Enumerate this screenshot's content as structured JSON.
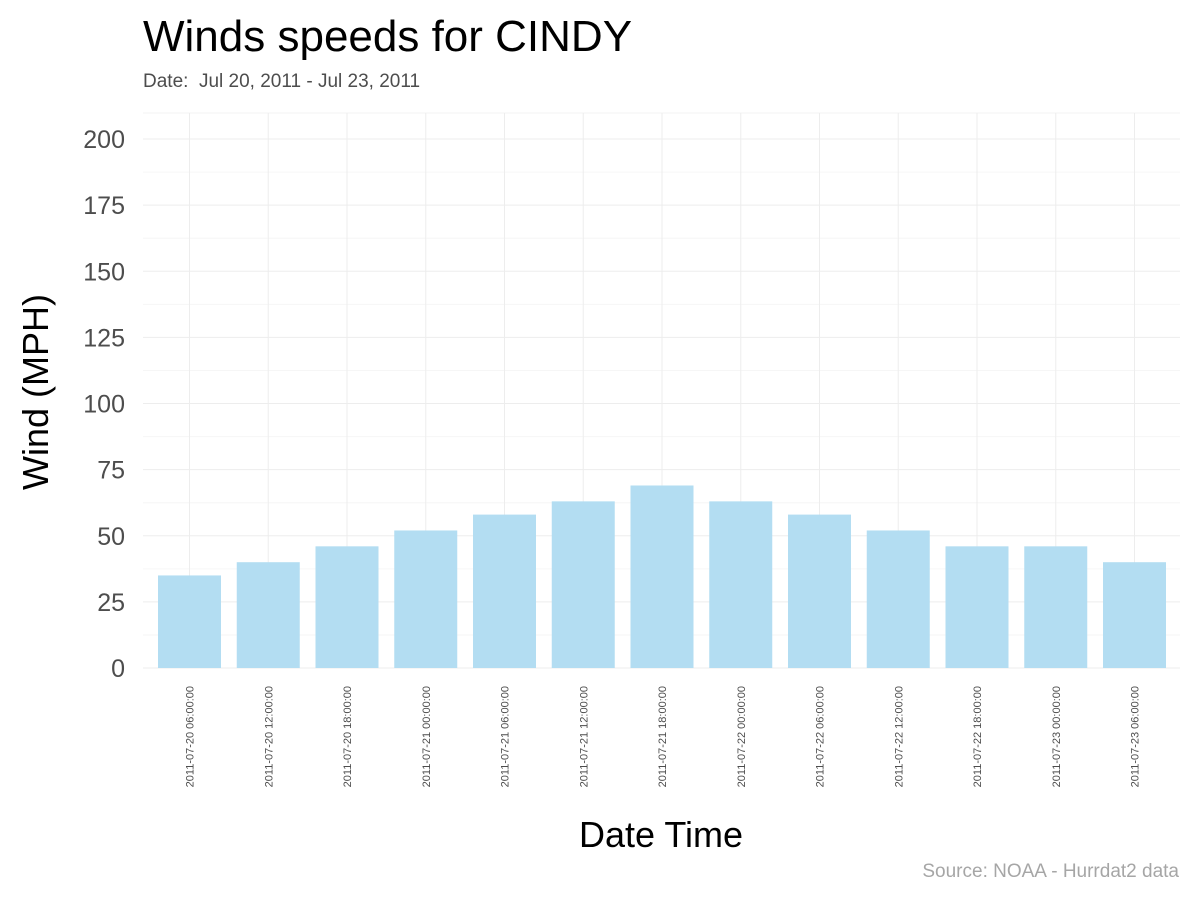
{
  "chart_data": {
    "type": "bar",
    "title": "Winds speeds for CINDY",
    "subtitle": "Date:  Jul 20, 2011 - Jul 23, 2011",
    "caption": "Source: NOAA - Hurrdat2 data",
    "xlabel": "Date Time",
    "ylabel": "Wind (MPH)",
    "ylim": [
      0,
      200
    ],
    "yticks": [
      0,
      25,
      50,
      75,
      100,
      125,
      150,
      175,
      200
    ],
    "grid": true,
    "bar_color": "#b3ddf2",
    "categories": [
      "2011-07-20 06:00:00",
      "2011-07-20 12:00:00",
      "2011-07-20 18:00:00",
      "2011-07-21 00:00:00",
      "2011-07-21 06:00:00",
      "2011-07-21 12:00:00",
      "2011-07-21 18:00:00",
      "2011-07-22 00:00:00",
      "2011-07-22 06:00:00",
      "2011-07-22 12:00:00",
      "2011-07-22 18:00:00",
      "2011-07-23 00:00:00",
      "2011-07-23 06:00:00"
    ],
    "values": [
      35,
      40,
      46,
      52,
      58,
      63,
      69,
      63,
      58,
      52,
      46,
      46,
      40
    ]
  }
}
